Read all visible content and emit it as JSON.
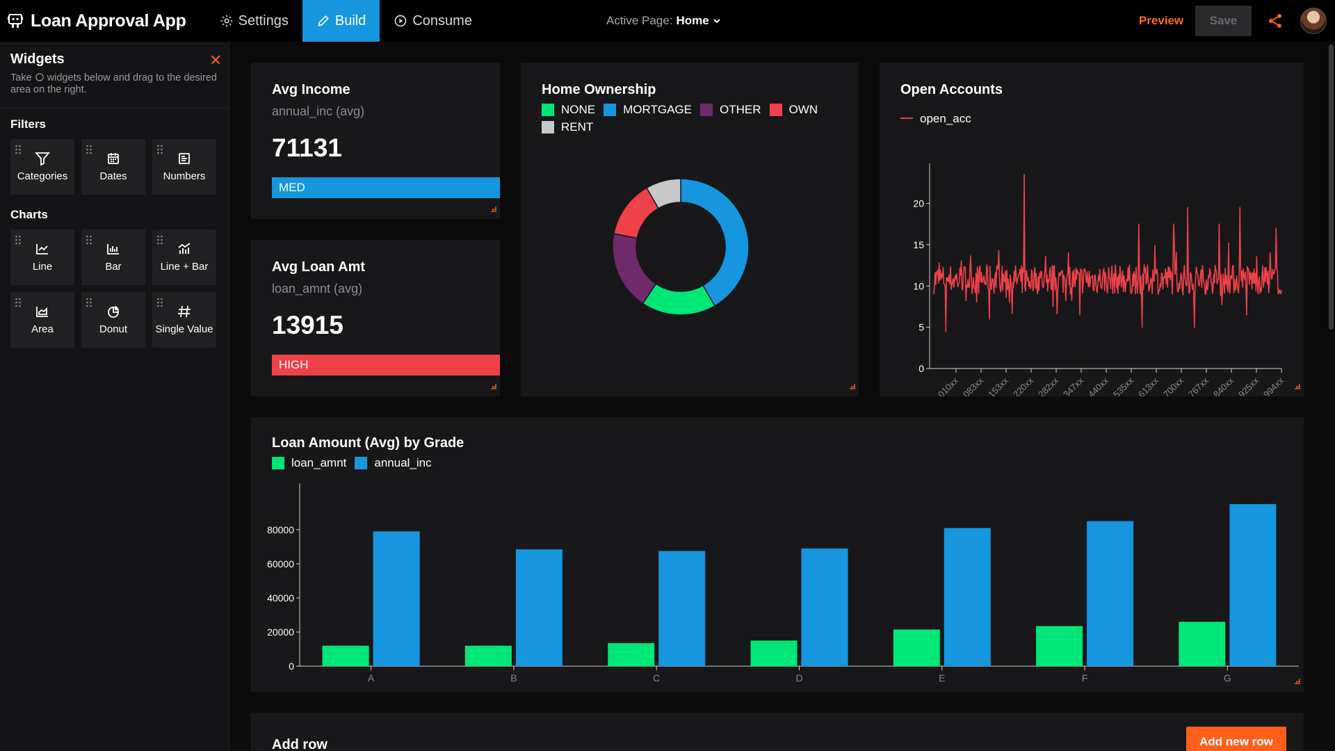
{
  "app": {
    "title": "Loan Approval App"
  },
  "nav": {
    "tabs": [
      {
        "label": "Settings"
      },
      {
        "label": "Build"
      },
      {
        "label": "Consume"
      }
    ]
  },
  "active_page": {
    "label": "Active Page:",
    "value": "Home"
  },
  "actions": {
    "preview": "Preview",
    "save": "Save"
  },
  "sidebar": {
    "title": "Widgets",
    "description_start": "Take",
    "description_end": "widgets below and drag to the desired area on the right.",
    "filters_label": "Filters",
    "filters": [
      {
        "label": "Categories",
        "icon": "filter-icon"
      },
      {
        "label": "Dates",
        "icon": "calendar-icon"
      },
      {
        "label": "Numbers",
        "icon": "numbers-icon"
      }
    ],
    "charts_label": "Charts",
    "charts": [
      {
        "label": "Line",
        "icon": "line-chart-icon"
      },
      {
        "label": "Bar",
        "icon": "bar-chart-icon"
      },
      {
        "label": "Line + Bar",
        "icon": "line-bar-chart-icon"
      },
      {
        "label": "Area",
        "icon": "area-chart-icon"
      },
      {
        "label": "Donut",
        "icon": "donut-chart-icon"
      },
      {
        "label": "Single Value",
        "icon": "hash-icon"
      }
    ]
  },
  "cards": {
    "avg_income": {
      "title": "Avg Income",
      "subtitle": "annual_inc (avg)",
      "value": "71131",
      "badge": "MED",
      "badge_color": "#1696de"
    },
    "avg_loan": {
      "title": "Avg Loan Amt",
      "subtitle": "loan_amnt (avg)",
      "value": "13915",
      "badge": "HIGH",
      "badge_color": "#ef4148"
    }
  },
  "add_row": {
    "title": "Add row",
    "button": "Add new row"
  },
  "colors": {
    "accent_orange": "#ff5f1a",
    "blue": "#1696de",
    "green": "#00e676",
    "red": "#ef4148",
    "purple": "#6e2a6b",
    "gray": "#c8c8c8"
  },
  "chart_data": [
    {
      "type": "pie",
      "title": "Home Ownership",
      "donut": true,
      "legend": "top",
      "categories": [
        "NONE",
        "MORTGAGE",
        "OTHER",
        "OWN",
        "RENT"
      ],
      "colors": [
        "#00e676",
        "#1696de",
        "#6e2a6b",
        "#ef4148",
        "#c8c8c8"
      ],
      "order": [
        "MORTGAGE",
        "NONE",
        "OTHER",
        "OWN",
        "RENT"
      ],
      "values": {
        "MORTGAGE": 40,
        "NONE": 17,
        "OTHER": 18,
        "OWN": 13,
        "RENT": 8
      }
    },
    {
      "type": "line",
      "title": "Open Accounts",
      "legend": "top-left",
      "series": [
        {
          "name": "open_acc",
          "color": "#ef4148"
        }
      ],
      "ylim": [
        0,
        24
      ],
      "yticks": [
        0,
        5,
        10,
        15,
        20
      ],
      "xticks": [
        "010xx",
        "083xx",
        "153xx",
        "220xx",
        "282xx",
        "347xx",
        "440xx",
        "535xx",
        "613xx",
        "700xx",
        "767xx",
        "840xx",
        "925xx",
        "994xx"
      ],
      "baseline": 10.8,
      "spikes": [
        {
          "pos": 0.035,
          "v": 4.5
        },
        {
          "pos": 0.16,
          "v": 6
        },
        {
          "pos": 0.26,
          "v": 23.5
        },
        {
          "pos": 0.42,
          "v": 6.5
        },
        {
          "pos": 0.5,
          "v": 4
        },
        {
          "pos": 0.59,
          "v": 17.5
        },
        {
          "pos": 0.6,
          "v": 5
        },
        {
          "pos": 0.69,
          "v": 17.5
        },
        {
          "pos": 0.73,
          "v": 19.5
        },
        {
          "pos": 0.75,
          "v": 5
        },
        {
          "pos": 0.82,
          "v": 17.5
        },
        {
          "pos": 0.88,
          "v": 19.5
        },
        {
          "pos": 0.9,
          "v": 6.5
        },
        {
          "pos": 0.985,
          "v": 17
        }
      ]
    },
    {
      "type": "bar",
      "title": "Loan Amount (Avg) by Grade",
      "legend": "top-left",
      "categories": [
        "A",
        "B",
        "C",
        "D",
        "E",
        "F",
        "G"
      ],
      "ylim": [
        0,
        95000
      ],
      "yticks": [
        0,
        20000,
        40000,
        60000,
        80000
      ],
      "series": [
        {
          "name": "loan_amnt",
          "color": "#00e676",
          "values": [
            12000,
            12000,
            13500,
            15000,
            21500,
            23500,
            26000
          ]
        },
        {
          "name": "annual_inc",
          "color": "#1696de",
          "values": [
            79000,
            68500,
            67500,
            69000,
            81000,
            85000,
            95000
          ]
        }
      ]
    }
  ]
}
